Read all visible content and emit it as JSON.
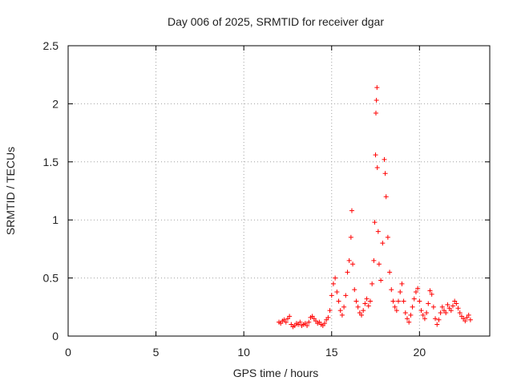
{
  "chart_data": {
    "type": "scatter",
    "title": "Day 006 of 2025, SRMTID for receiver dgar",
    "xlabel": "GPS time / hours",
    "ylabel": "SRMTID / TECUs",
    "xlim": [
      0,
      24
    ],
    "ylim": [
      0,
      2.5
    ],
    "xticks": [
      0,
      5,
      10,
      15,
      20
    ],
    "xtick_labels": [
      "0",
      "5",
      "10",
      "15",
      "20"
    ],
    "yticks": [
      0,
      0.5,
      1,
      1.5,
      2,
      2.5
    ],
    "ytick_labels": [
      "0",
      "0.5",
      "1",
      "1.5",
      "2",
      "2.5"
    ],
    "grid": true,
    "marker": "+",
    "marker_color": "#ff0000",
    "series": [
      {
        "name": "SRMTID",
        "points": [
          [
            12.0,
            0.12
          ],
          [
            12.1,
            0.11
          ],
          [
            12.2,
            0.13
          ],
          [
            12.3,
            0.14
          ],
          [
            12.4,
            0.12
          ],
          [
            12.5,
            0.15
          ],
          [
            12.6,
            0.17
          ],
          [
            12.7,
            0.1
          ],
          [
            12.8,
            0.08
          ],
          [
            12.9,
            0.09
          ],
          [
            13.0,
            0.11
          ],
          [
            13.1,
            0.1
          ],
          [
            13.2,
            0.12
          ],
          [
            13.3,
            0.09
          ],
          [
            13.4,
            0.1
          ],
          [
            13.5,
            0.11
          ],
          [
            13.6,
            0.09
          ],
          [
            13.7,
            0.12
          ],
          [
            13.8,
            0.16
          ],
          [
            13.9,
            0.17
          ],
          [
            14.0,
            0.15
          ],
          [
            14.1,
            0.13
          ],
          [
            14.2,
            0.11
          ],
          [
            14.3,
            0.12
          ],
          [
            14.4,
            0.1
          ],
          [
            14.5,
            0.09
          ],
          [
            14.6,
            0.11
          ],
          [
            14.7,
            0.14
          ],
          [
            14.8,
            0.16
          ],
          [
            14.9,
            0.22
          ],
          [
            15.0,
            0.35
          ],
          [
            15.1,
            0.45
          ],
          [
            15.2,
            0.5
          ],
          [
            15.3,
            0.38
          ],
          [
            15.4,
            0.3
          ],
          [
            15.5,
            0.22
          ],
          [
            15.6,
            0.18
          ],
          [
            15.7,
            0.25
          ],
          [
            15.8,
            0.35
          ],
          [
            15.9,
            0.55
          ],
          [
            16.0,
            0.65
          ],
          [
            16.1,
            0.85
          ],
          [
            16.15,
            1.08
          ],
          [
            16.2,
            0.62
          ],
          [
            16.3,
            0.4
          ],
          [
            16.4,
            0.3
          ],
          [
            16.5,
            0.25
          ],
          [
            16.6,
            0.2
          ],
          [
            16.7,
            0.18
          ],
          [
            16.8,
            0.22
          ],
          [
            16.9,
            0.28
          ],
          [
            17.0,
            0.32
          ],
          [
            17.1,
            0.26
          ],
          [
            17.2,
            0.3
          ],
          [
            17.3,
            0.45
          ],
          [
            17.4,
            0.65
          ],
          [
            17.45,
            0.98
          ],
          [
            17.5,
            1.56
          ],
          [
            17.52,
            1.92
          ],
          [
            17.55,
            2.03
          ],
          [
            17.58,
            2.14
          ],
          [
            17.6,
            1.45
          ],
          [
            17.65,
            0.9
          ],
          [
            17.7,
            0.62
          ],
          [
            17.8,
            0.48
          ],
          [
            17.9,
            0.8
          ],
          [
            18.0,
            1.52
          ],
          [
            18.05,
            1.4
          ],
          [
            18.1,
            1.2
          ],
          [
            18.2,
            0.85
          ],
          [
            18.3,
            0.55
          ],
          [
            18.4,
            0.4
          ],
          [
            18.5,
            0.3
          ],
          [
            18.6,
            0.25
          ],
          [
            18.7,
            0.22
          ],
          [
            18.8,
            0.3
          ],
          [
            18.9,
            0.38
          ],
          [
            19.0,
            0.45
          ],
          [
            19.1,
            0.3
          ],
          [
            19.2,
            0.2
          ],
          [
            19.3,
            0.15
          ],
          [
            19.4,
            0.12
          ],
          [
            19.5,
            0.18
          ],
          [
            19.6,
            0.25
          ],
          [
            19.7,
            0.32
          ],
          [
            19.8,
            0.38
          ],
          [
            19.9,
            0.41
          ],
          [
            20.0,
            0.3
          ],
          [
            20.1,
            0.22
          ],
          [
            20.2,
            0.18
          ],
          [
            20.3,
            0.15
          ],
          [
            20.4,
            0.2
          ],
          [
            20.5,
            0.28
          ],
          [
            20.6,
            0.39
          ],
          [
            20.7,
            0.36
          ],
          [
            20.8,
            0.25
          ],
          [
            20.9,
            0.15
          ],
          [
            21.0,
            0.1
          ],
          [
            21.1,
            0.14
          ],
          [
            21.2,
            0.2
          ],
          [
            21.3,
            0.25
          ],
          [
            21.4,
            0.22
          ],
          [
            21.5,
            0.2
          ],
          [
            21.6,
            0.27
          ],
          [
            21.7,
            0.24
          ],
          [
            21.8,
            0.22
          ],
          [
            21.9,
            0.26
          ],
          [
            22.0,
            0.3
          ],
          [
            22.1,
            0.28
          ],
          [
            22.2,
            0.24
          ],
          [
            22.3,
            0.2
          ],
          [
            22.4,
            0.17
          ],
          [
            22.5,
            0.15
          ],
          [
            22.6,
            0.13
          ],
          [
            22.7,
            0.16
          ],
          [
            22.8,
            0.18
          ],
          [
            22.9,
            0.14
          ]
        ]
      }
    ]
  }
}
